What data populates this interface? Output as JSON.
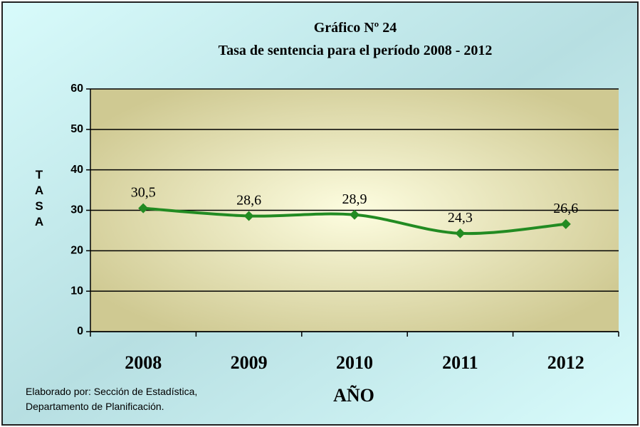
{
  "chart_data": {
    "type": "line",
    "title": "Gráfico Nº 24",
    "subtitle": "Tasa de sentencia  para el período  2008 - 2012",
    "xlabel": "AÑO",
    "ylabel": "TASA",
    "source": [
      "Elaborado por: Sección de Estadística,",
      "Departamento de Planificación."
    ],
    "categories": [
      "2008",
      "2009",
      "2010",
      "2011",
      "2012"
    ],
    "series": [
      {
        "name": "Tasa",
        "color": "#228b22",
        "values": [
          30.5,
          28.6,
          28.9,
          24.3,
          26.6
        ],
        "value_labels": [
          "30,5",
          "28,6",
          "28,9",
          "24,3",
          "26,6"
        ]
      }
    ],
    "ylim": [
      0,
      60
    ],
    "yticks": [
      0,
      10,
      20,
      30,
      40,
      50,
      60
    ],
    "grid": true
  }
}
